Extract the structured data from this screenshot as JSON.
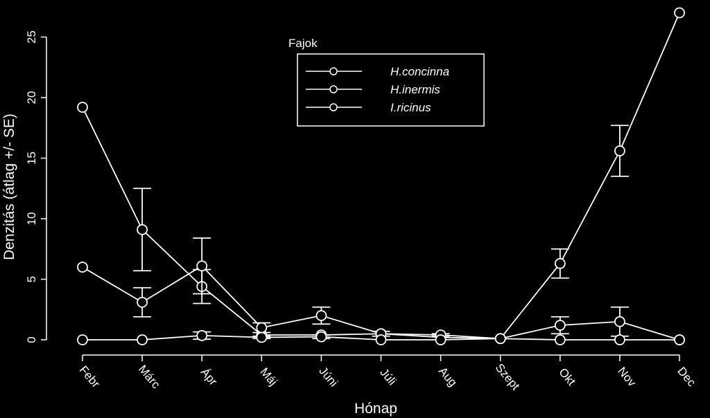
{
  "chart_data": {
    "type": "line",
    "xlabel": "Hónap",
    "ylabel": "Denzitás (átlag +/- SE)",
    "categories": [
      "Febr",
      "Márc",
      "Ápr",
      "Máj",
      "Júni",
      "Júli",
      "Aug",
      "Szept",
      "Okt",
      "Nov",
      "Dec"
    ],
    "ylim": [
      0,
      27
    ],
    "yticks": [
      0,
      5,
      10,
      15,
      20,
      25
    ],
    "grid": false,
    "legend": {
      "title": "Fajok",
      "placement": "top-center"
    },
    "series": [
      {
        "name": "H.concinna",
        "values": [
          19.2,
          9.1,
          4.4,
          0.4,
          0.4,
          0.5,
          0.2,
          0.1,
          6.3,
          15.6,
          27.0
        ],
        "se": [
          0,
          3.4,
          1.4,
          0,
          0,
          0,
          0,
          0,
          1.2,
          2.1,
          0
        ]
      },
      {
        "name": "H.inermis",
        "values": [
          6.0,
          3.1,
          6.1,
          1.0,
          2.0,
          0.5,
          0.4,
          0.1,
          1.2,
          1.5,
          0.0
        ],
        "se": [
          0,
          1.2,
          2.3,
          0.4,
          0.7,
          0.2,
          0.1,
          0,
          0.7,
          1.2,
          0
        ]
      },
      {
        "name": "I.ricinus",
        "values": [
          0.0,
          0.0,
          0.35,
          0.2,
          0.25,
          0.0,
          0.0,
          0.1,
          0.0,
          0.0,
          0.0
        ],
        "se": [
          0,
          0,
          0.3,
          0.1,
          0.15,
          0,
          0,
          0,
          0,
          0,
          0
        ]
      }
    ]
  }
}
